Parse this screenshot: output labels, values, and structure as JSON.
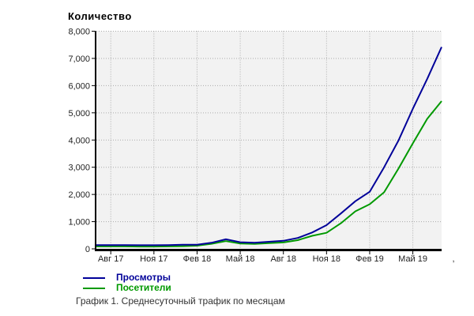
{
  "title": "Количество",
  "caption": "График 1. Среднесуточный трафик по месяцам",
  "legend": {
    "items": [
      {
        "label": "Просмотры",
        "color": "#000099"
      },
      {
        "label": "Посетители",
        "color": "#009900"
      }
    ]
  },
  "chart_data": {
    "type": "line",
    "title": "Количество",
    "x": [
      "Июл 17",
      "Авг 17",
      "Сен 17",
      "Окт 17",
      "Ноя 17",
      "Дек 17",
      "Янв 18",
      "Фев 18",
      "Мар 18",
      "Апр 18",
      "Май 18",
      "Июн 18",
      "Июл 18",
      "Авг 18",
      "Сен 18",
      "Окт 18",
      "Ноя 18",
      "Дек 18",
      "Янв 19",
      "Фев 19",
      "Мар 19",
      "Апр 19",
      "Май 19",
      "Июн 19",
      "Июл 19"
    ],
    "x_tick_labels": [
      "Авг 17",
      "Ноя 17",
      "Фев 18",
      "Май 18",
      "Авг 18",
      "Ноя 18",
      "Фев 19",
      "Май 19"
    ],
    "x_tick_indices": [
      1,
      4,
      7,
      10,
      13,
      16,
      19,
      22
    ],
    "x_axis_clipped_fragment": ",",
    "series": [
      {
        "name": "Просмотры",
        "color": "#000099",
        "values": [
          140,
          140,
          140,
          135,
          135,
          140,
          150,
          155,
          225,
          350,
          245,
          225,
          260,
          295,
          400,
          600,
          870,
          1300,
          1750,
          2100,
          3000,
          3980,
          5150,
          6250,
          7420
        ]
      },
      {
        "name": "Посетители",
        "color": "#009900",
        "values": [
          90,
          90,
          90,
          85,
          85,
          90,
          100,
          115,
          185,
          285,
          195,
          180,
          210,
          235,
          320,
          480,
          590,
          940,
          1380,
          1640,
          2080,
          2950,
          3880,
          4780,
          5430
        ]
      }
    ],
    "ylim": [
      0,
      8000
    ],
    "y_tick_labels": [
      "0",
      "1,000",
      "2,000",
      "3,000",
      "4,000",
      "5,000",
      "6,000",
      "7,000",
      "8,000"
    ],
    "xlabel": "",
    "ylabel": "",
    "grid": true,
    "legend_position": "bottom-left",
    "plot_bg": "#f2f2f2",
    "grid_color": "#aaaaaa",
    "axis_color": "#000000",
    "tick_label_color": "#222222"
  }
}
